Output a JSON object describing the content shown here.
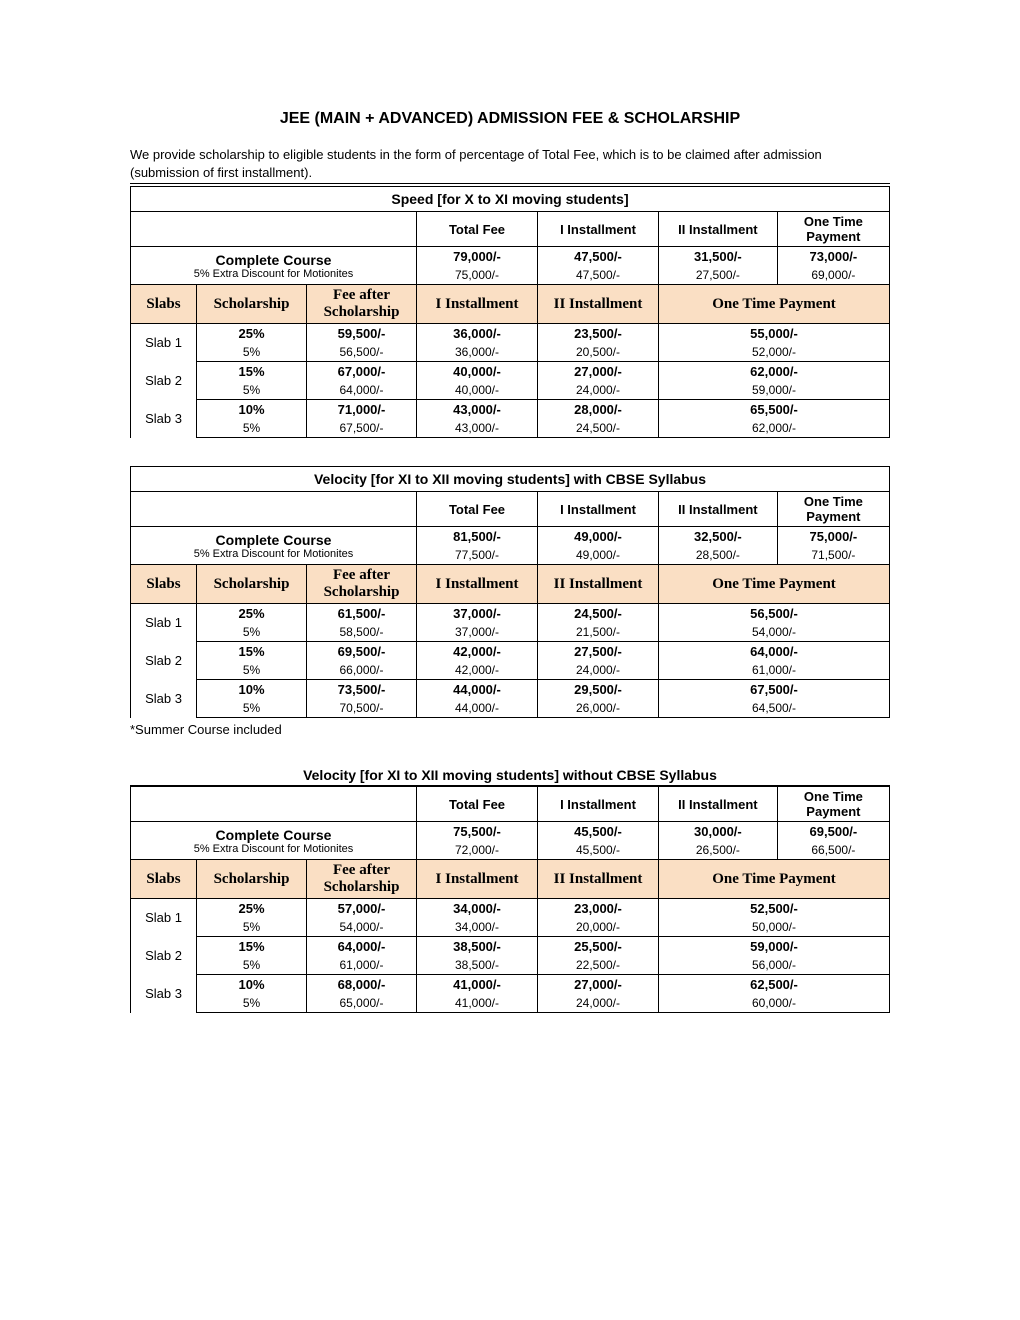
{
  "title": "JEE (MAIN + ADVANCED) ADMISSION FEE & SCHOLARSHIP",
  "intro": "We provide scholarship to eligible students in the form of percentage of Total Fee, which is to be claimed after admission (submission of first installment).",
  "columns_top": {
    "total": "Total Fee",
    "i1": "I Installment",
    "i2": "II Installment",
    "otp": "One Time Payment"
  },
  "columns_slab": {
    "slabs": "Slabs",
    "sch": "Scholarship",
    "fee": "Fee after Scholarship",
    "i1": "I Installment",
    "i2": "II Installment",
    "otp": "One Time  Payment"
  },
  "course": {
    "label": "Complete Course",
    "sub": "5% Extra Discount for Motionites"
  },
  "note_velocity": "*Summer Course included",
  "colors": {
    "peach": "#fadfc4",
    "border": "#000000",
    "text": "#000000",
    "bg": "#ffffff"
  },
  "tables": [
    {
      "caption": "Speed [for X to XI moving students]",
      "course": {
        "total_m": "79,000/-",
        "total_s": "75,000/-",
        "i1_m": "47,500/-",
        "i1_s": "47,500/-",
        "i2_m": "31,500/-",
        "i2_s": "27,500/-",
        "otp_m": "73,000/-",
        "otp_s": "69,000/-"
      },
      "slabs": [
        {
          "name": "Slab 1",
          "sch_m": "25%",
          "sch_s": "5%",
          "fee_m": "59,500/-",
          "fee_s": "56,500/-",
          "i1_m": "36,000/-",
          "i1_s": "36,000/-",
          "i2_m": "23,500/-",
          "i2_s": "20,500/-",
          "otp_m": "55,000/-",
          "otp_s": "52,000/-"
        },
        {
          "name": "Slab 2",
          "sch_m": "15%",
          "sch_s": "5%",
          "fee_m": "67,000/-",
          "fee_s": "64,000/-",
          "i1_m": "40,000/-",
          "i1_s": "40,000/-",
          "i2_m": "27,000/-",
          "i2_s": "24,000/-",
          "otp_m": "62,000/-",
          "otp_s": "59,000/-"
        },
        {
          "name": "Slab 3",
          "sch_m": "10%",
          "sch_s": "5%",
          "fee_m": "71,000/-",
          "fee_s": "67,500/-",
          "i1_m": "43,000/-",
          "i1_s": "43,000/-",
          "i2_m": "28,000/-",
          "i2_s": "24,500/-",
          "otp_m": "65,500/-",
          "otp_s": "62,000/-"
        }
      ]
    },
    {
      "caption": "Velocity [for XI to XII moving students] with CBSE Syllabus",
      "course": {
        "total_m": "81,500/-",
        "total_s": "77,500/-",
        "i1_m": "49,000/-",
        "i1_s": "49,000/-",
        "i2_m": "32,500/-",
        "i2_s": "28,500/-",
        "otp_m": "75,000/-",
        "otp_s": "71,500/-"
      },
      "slabs": [
        {
          "name": "Slab 1",
          "sch_m": "25%",
          "sch_s": "5%",
          "fee_m": "61,500/-",
          "fee_s": "58,500/-",
          "i1_m": "37,000/-",
          "i1_s": "37,000/-",
          "i2_m": "24,500/-",
          "i2_s": "21,500/-",
          "otp_m": "56,500/-",
          "otp_s": "54,000/-"
        },
        {
          "name": "Slab 2",
          "sch_m": "15%",
          "sch_s": "5%",
          "fee_m": "69,500/-",
          "fee_s": "66,000/-",
          "i1_m": "42,000/-",
          "i1_s": "42,000/-",
          "i2_m": "27,500/-",
          "i2_s": "24,000/-",
          "otp_m": "64,000/-",
          "otp_s": "61,000/-"
        },
        {
          "name": "Slab 3",
          "sch_m": "10%",
          "sch_s": "5%",
          "fee_m": "73,500/-",
          "fee_s": "70,500/-",
          "i1_m": "44,000/-",
          "i1_s": "44,000/-",
          "i2_m": "29,500/-",
          "i2_s": "26,000/-",
          "otp_m": "67,500/-",
          "otp_s": "64,500/-"
        }
      ]
    },
    {
      "caption": "Velocity [for XI to XII moving students] without CBSE Syllabus",
      "course": {
        "total_m": "75,500/-",
        "total_s": "72,000/-",
        "i1_m": "45,500/-",
        "i1_s": "45,500/-",
        "i2_m": "30,000/-",
        "i2_s": "26,500/-",
        "otp_m": "69,500/-",
        "otp_s": "66,500/-"
      },
      "slabs": [
        {
          "name": "Slab 1",
          "sch_m": "25%",
          "sch_s": "5%",
          "fee_m": "57,000/-",
          "fee_s": "54,000/-",
          "i1_m": "34,000/-",
          "i1_s": "34,000/-",
          "i2_m": "23,000/-",
          "i2_s": "20,000/-",
          "otp_m": "52,500/-",
          "otp_s": "50,000/-"
        },
        {
          "name": "Slab 2",
          "sch_m": "15%",
          "sch_s": "5%",
          "fee_m": "64,000/-",
          "fee_s": "61,000/-",
          "i1_m": "38,500/-",
          "i1_s": "38,500/-",
          "i2_m": "25,500/-",
          "i2_s": "22,500/-",
          "otp_m": "59,000/-",
          "otp_s": "56,000/-"
        },
        {
          "name": "Slab 3",
          "sch_m": "10%",
          "sch_s": "5%",
          "fee_m": "68,000/-",
          "fee_s": "65,000/-",
          "i1_m": "41,000/-",
          "i1_s": "41,000/-",
          "i2_m": "27,000/-",
          "i2_s": "24,000/-",
          "otp_m": "62,500/-",
          "otp_s": "60,000/-"
        }
      ]
    }
  ]
}
